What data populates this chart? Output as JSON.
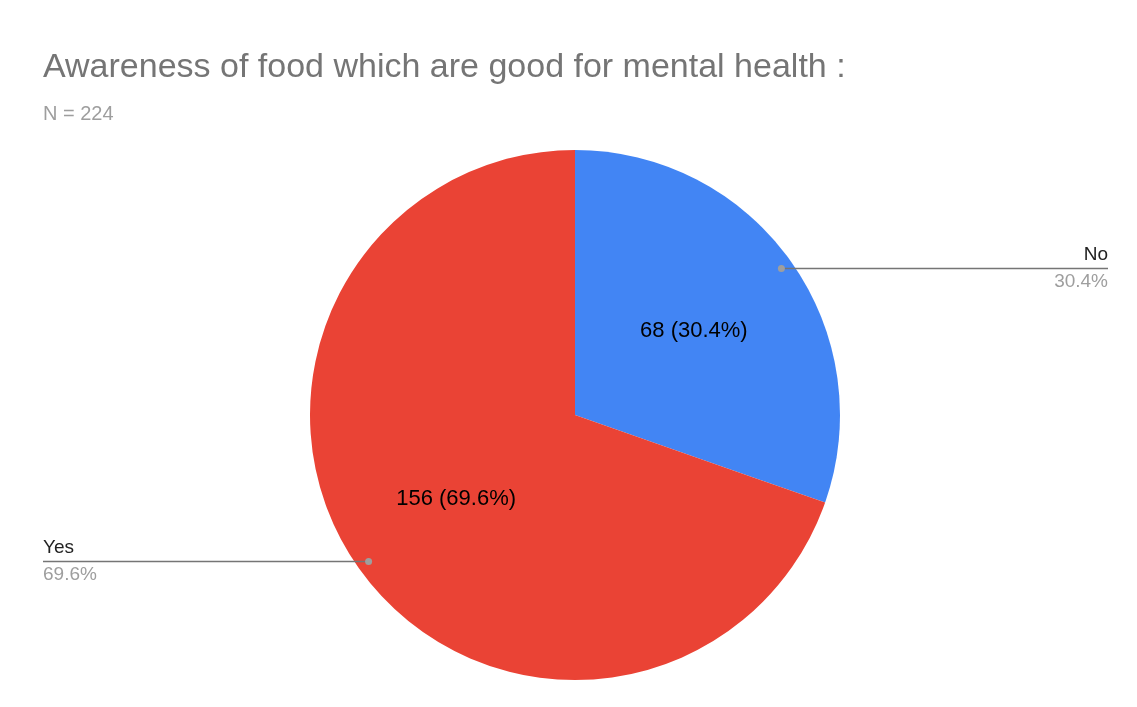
{
  "chart_data": {
    "type": "pie",
    "title": "Awareness of food which are good for mental health :",
    "subtitle": "N = 224",
    "categories": [
      "No",
      "Yes"
    ],
    "values": [
      68,
      156
    ],
    "colors": [
      "#4285f4",
      "#ea4335"
    ],
    "value_labels": [
      "68 (30.4%)",
      "156 (69.6%)"
    ],
    "annotations": [
      {
        "text": "30.4%",
        "x": "No"
      },
      {
        "text": "69.6%",
        "x": "Yes"
      }
    ]
  }
}
